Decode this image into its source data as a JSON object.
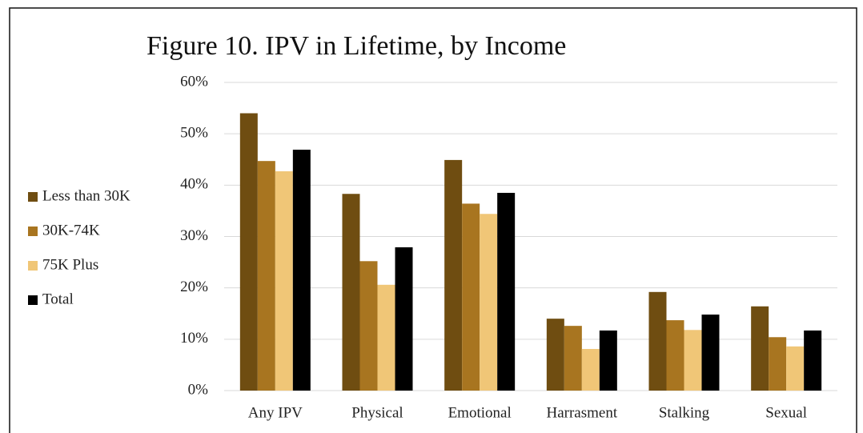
{
  "chart_data": {
    "type": "bar",
    "title": "Figure 10. IPV in Lifetime, by Income",
    "categories": [
      "Any IPV",
      "Physical",
      "Emotional",
      "Harrasment",
      "Stalking",
      "Sexual"
    ],
    "series": [
      {
        "name": "Less than 30K",
        "color": "#6f4d11",
        "values": [
          54.0,
          38.3,
          44.9,
          14.0,
          19.2,
          16.4
        ]
      },
      {
        "name": "30K-74K",
        "color": "#a87520",
        "values": [
          44.7,
          25.2,
          36.4,
          12.6,
          13.7,
          10.4
        ]
      },
      {
        "name": "75K Plus",
        "color": "#f0c677",
        "values": [
          42.7,
          20.6,
          34.4,
          8.1,
          11.8,
          8.6
        ]
      },
      {
        "name": "Total",
        "color": "#000000",
        "values": [
          46.9,
          27.9,
          38.5,
          11.7,
          14.8,
          11.7
        ]
      }
    ],
    "ylim": [
      0,
      60
    ],
    "yticks": [
      {
        "value": 0,
        "label": "0%"
      },
      {
        "value": 10,
        "label": "10%"
      },
      {
        "value": 20,
        "label": "20%"
      },
      {
        "value": 30,
        "label": "30%"
      },
      {
        "value": 40,
        "label": "40%"
      },
      {
        "value": 50,
        "label": "50%"
      },
      {
        "value": 60,
        "label": "60%"
      }
    ],
    "grid": true,
    "legend": "left"
  }
}
